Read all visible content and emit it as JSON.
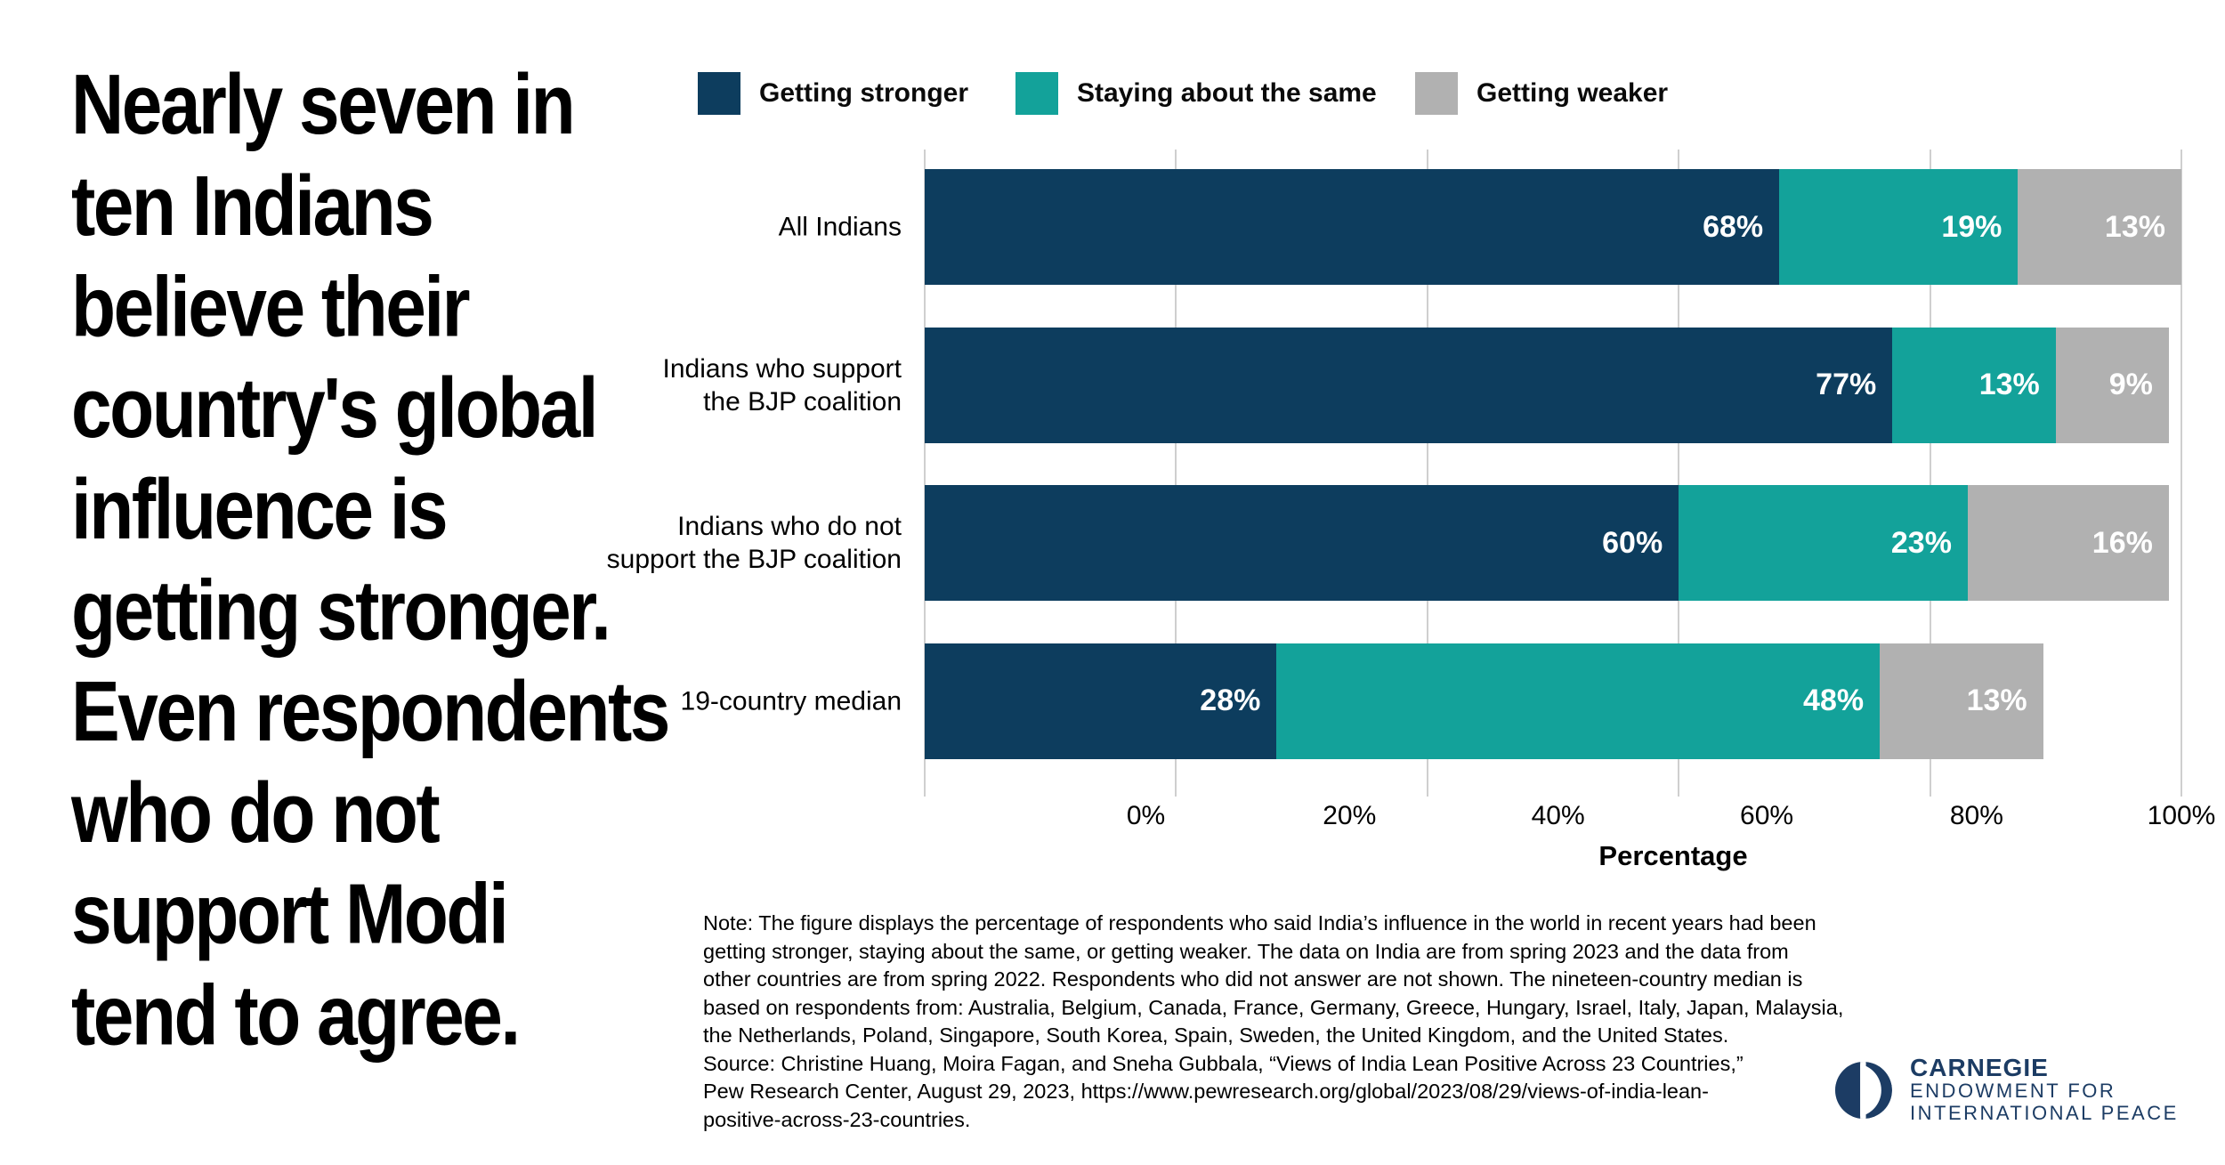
{
  "headline": "Nearly seven in\nten Indians\nbelieve their\ncountry's global\ninfluence is\ngetting stronger.\nEven respondents\nwho do not\nsupport Modi\ntend to agree.",
  "chart_data": {
    "type": "bar",
    "orientation": "horizontal",
    "stacked": true,
    "categories": [
      "All Indians",
      "Indians who support\nthe BJP coalition",
      "Indians who do not\nsupport the BJP coalition",
      "19-country median"
    ],
    "series": [
      {
        "name": "Getting stronger",
        "color": "#0d3d5e",
        "values": [
          68,
          77,
          60,
          28
        ]
      },
      {
        "name": "Staying about the same",
        "color": "#13a29a",
        "values": [
          19,
          13,
          23,
          48
        ]
      },
      {
        "name": "Getting weaker",
        "color": "#b1b1b1",
        "values": [
          13,
          9,
          16,
          13
        ]
      }
    ],
    "value_suffix": "%",
    "xlabel": "Percentage",
    "x_ticks": [
      "0%",
      "20%",
      "40%",
      "60%",
      "80%",
      "100%"
    ],
    "xlim": [
      0,
      100
    ],
    "grid": true,
    "gridline_color": "#cfcfcf",
    "legend_position": "top",
    "bar_label_color": "#ffffff"
  },
  "note": "Note: The figure displays the percentage of respondents who said India’s influence in the world in recent years had been\ngetting stronger, staying about the same, or getting weaker. The data on India are from spring 2023 and the data from\nother countries are from spring 2022. Respondents who did not answer are not shown. The nineteen-country median is\nbased on respondents from: Australia, Belgium, Canada, France, Germany, Greece, Hungary, Israel, Italy, Japan, Malaysia,\nthe Netherlands, Poland, Singapore, South Korea, Spain, Sweden, the United Kingdom, and the United States.\nSource: Christine Huang, Moira Fagan, and Sneha Gubbala, “Views of India Lean Positive Across 23 Countries,”\nPew Research Center, August 29, 2023, https://www.pewresearch.org/global/2023/08/29/views-of-india-lean-\npositive-across-23-countries.",
  "logo": {
    "line1": "CARNEGIE",
    "line2": "ENDOWMENT FOR",
    "line3": "INTERNATIONAL PEACE",
    "color": "#1c3c64"
  }
}
